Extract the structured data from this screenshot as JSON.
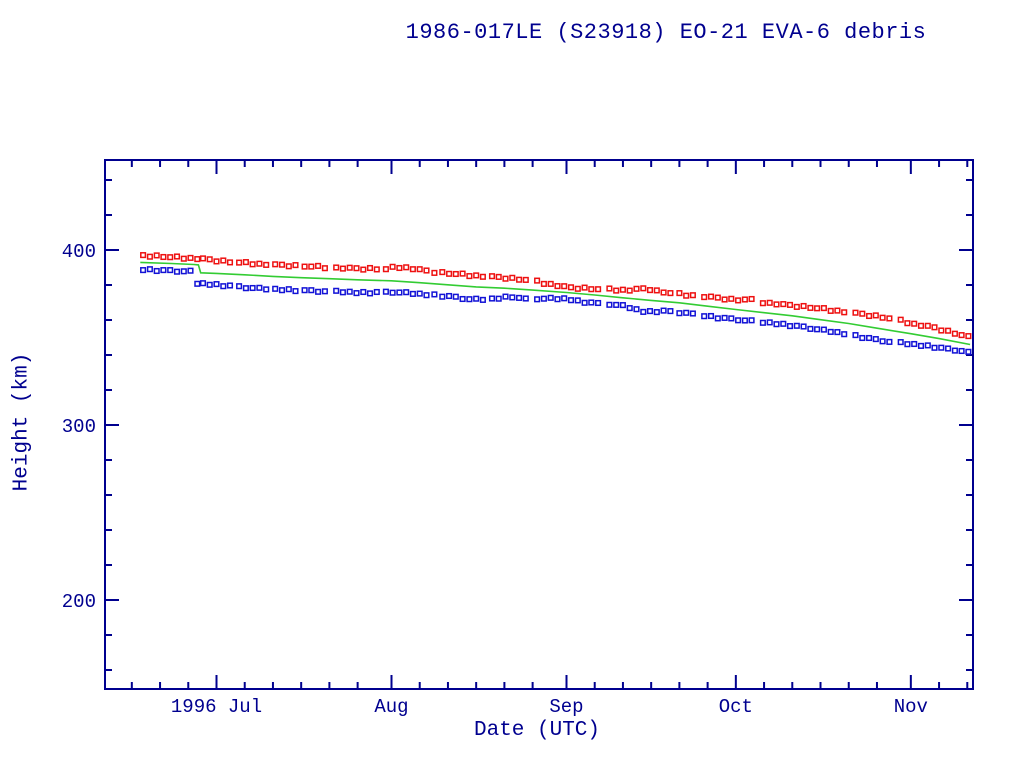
{
  "window": {
    "title": "1986-017LE (S23918) EO-21 EVA-6 debris"
  },
  "colors": {
    "background": "#ffffff",
    "frame_and_text": "#00008f",
    "apogee": "#ee1010",
    "perigee": "#1212d6",
    "mean": "#33cc33"
  },
  "chart_data": {
    "type": "scatter",
    "title": "1986-017LE (S23918) EO-21 EVA-6 debris",
    "xlabel": "Date (UTC)",
    "ylabel": "Height (km)",
    "grid": false,
    "legend": "none",
    "x_axis": {
      "unit": "days relative to 1996 Jul 1",
      "range_days": [
        -19.8,
        134.0
      ],
      "major_ticks": [
        {
          "day": 0,
          "label": "1996 Jul"
        },
        {
          "day": 31,
          "label": "Aug"
        },
        {
          "day": 62,
          "label": "Sep"
        },
        {
          "day": 92,
          "label": "Oct"
        },
        {
          "day": 123,
          "label": "Nov"
        }
      ],
      "minor_tick_days": [
        -15,
        -10,
        -5,
        5,
        10,
        15,
        20,
        25,
        36,
        41,
        46,
        51,
        56,
        67,
        72,
        77,
        82,
        87,
        97,
        102,
        107,
        112,
        117,
        128,
        133
      ]
    },
    "y_axis": {
      "range_km": [
        149,
        451.5
      ],
      "major_ticks": [
        200,
        300,
        400
      ],
      "minor_ticks": [
        160,
        180,
        220,
        240,
        260,
        280,
        320,
        340,
        360,
        380,
        420,
        440
      ]
    },
    "series": [
      {
        "name": "apogee-height",
        "style": "open-square",
        "color_key": "apogee",
        "points": [
          [
            -13,
            397.1
          ],
          [
            -11.8,
            396.2
          ],
          [
            -10.6,
            396.9
          ],
          [
            -9.4,
            396.0
          ],
          [
            -8.2,
            395.9
          ],
          [
            -7,
            396.3
          ],
          [
            -5.8,
            395.0
          ],
          [
            -4.6,
            395.5
          ],
          [
            -3.4,
            394.8
          ],
          [
            -2.4,
            395.2
          ],
          [
            -1.2,
            394.7
          ],
          [
            0,
            393.5
          ],
          [
            1.2,
            394.0
          ],
          [
            2.4,
            392.9
          ],
          [
            4,
            392.8
          ],
          [
            5.2,
            393.1
          ],
          [
            6.4,
            391.8
          ],
          [
            7.6,
            392.2
          ],
          [
            8.8,
            391.5
          ],
          [
            10.4,
            391.8
          ],
          [
            11.6,
            391.6
          ],
          [
            12.8,
            390.7
          ],
          [
            14,
            391.4
          ],
          [
            15.6,
            390.5
          ],
          [
            16.8,
            390.5
          ],
          [
            18,
            390.9
          ],
          [
            19.2,
            389.6
          ],
          [
            21.2,
            390.0
          ],
          [
            22.4,
            389.4
          ],
          [
            23.6,
            389.9
          ],
          [
            24.8,
            389.6
          ],
          [
            26,
            388.8
          ],
          [
            27.2,
            389.7
          ],
          [
            28.4,
            388.9
          ],
          [
            30,
            389.0
          ],
          [
            31.2,
            390.4
          ],
          [
            32.4,
            389.7
          ],
          [
            33.6,
            390.1
          ],
          [
            34.8,
            389.0
          ],
          [
            36,
            389.0
          ],
          [
            37.2,
            388.3
          ],
          [
            38.6,
            386.9
          ],
          [
            40,
            387.4
          ],
          [
            41.2,
            386.4
          ],
          [
            42.4,
            386.3
          ],
          [
            43.6,
            386.5
          ],
          [
            44.8,
            385.1
          ],
          [
            46,
            385.5
          ],
          [
            47.2,
            384.7
          ],
          [
            48.8,
            385.0
          ],
          [
            50,
            384.6
          ],
          [
            51.2,
            383.6
          ],
          [
            52.4,
            384.1
          ],
          [
            53.6,
            383.0
          ],
          [
            54.8,
            382.9
          ],
          [
            56.8,
            382.5
          ],
          [
            58,
            380.6
          ],
          [
            59.2,
            380.6
          ],
          [
            60.4,
            379.4
          ],
          [
            61.6,
            379.3
          ],
          [
            62.8,
            378.7
          ],
          [
            64,
            377.8
          ],
          [
            65.2,
            378.5
          ],
          [
            66.4,
            377.6
          ],
          [
            67.6,
            377.6
          ],
          [
            69.6,
            378.0
          ],
          [
            70.8,
            376.8
          ],
          [
            72,
            377.3
          ],
          [
            73.2,
            376.8
          ],
          [
            74.4,
            377.8
          ],
          [
            75.6,
            378.1
          ],
          [
            76.8,
            377.1
          ],
          [
            78,
            376.9
          ],
          [
            79.2,
            375.7
          ],
          [
            80.4,
            375.4
          ],
          [
            82,
            375.4
          ],
          [
            83.2,
            373.9
          ],
          [
            84.4,
            374.2
          ],
          [
            86.4,
            373.1
          ],
          [
            87.6,
            373.4
          ],
          [
            88.8,
            372.8
          ],
          [
            90,
            371.7
          ],
          [
            91.2,
            372.1
          ],
          [
            92.4,
            371.2
          ],
          [
            93.6,
            371.7
          ],
          [
            94.8,
            372.0
          ],
          [
            96.8,
            369.6
          ],
          [
            98,
            369.8
          ],
          [
            99.2,
            368.9
          ],
          [
            100.4,
            369.1
          ],
          [
            101.6,
            368.6
          ],
          [
            102.8,
            367.5
          ],
          [
            104,
            368.0
          ],
          [
            105.2,
            366.9
          ],
          [
            106.4,
            366.7
          ],
          [
            107.6,
            366.8
          ],
          [
            108.8,
            365.2
          ],
          [
            110,
            365.4
          ],
          [
            111.2,
            364.4
          ],
          [
            113.2,
            364.2
          ],
          [
            114.4,
            363.6
          ],
          [
            115.6,
            362.3
          ],
          [
            116.8,
            362.6
          ],
          [
            118,
            361.3
          ],
          [
            119.2,
            360.9
          ],
          [
            121.2,
            360.2
          ],
          [
            122.4,
            358.2
          ],
          [
            123.6,
            357.9
          ],
          [
            124.8,
            356.7
          ],
          [
            126,
            356.7
          ],
          [
            127.2,
            355.8
          ],
          [
            128.4,
            354.0
          ],
          [
            129.6,
            353.9
          ],
          [
            130.8,
            352.2
          ],
          [
            132,
            351.4
          ],
          [
            133.2,
            350.8
          ]
        ]
      },
      {
        "name": "perigee-height",
        "style": "open-square",
        "color_key": "perigee",
        "points": [
          [
            -13,
            388.5
          ],
          [
            -11.8,
            389.0
          ],
          [
            -10.6,
            388.0
          ],
          [
            -9.4,
            388.5
          ],
          [
            -8.2,
            388.5
          ],
          [
            -7,
            387.6
          ],
          [
            -5.8,
            387.8
          ],
          [
            -4.6,
            388.2
          ],
          [
            -3.4,
            380.7
          ],
          [
            -2.4,
            381.0
          ],
          [
            -1.2,
            380.1
          ],
          [
            0,
            380.5
          ],
          [
            1.2,
            379.3
          ],
          [
            2.4,
            379.7
          ],
          [
            4,
            379.3
          ],
          [
            5.2,
            378.2
          ],
          [
            6.4,
            378.3
          ],
          [
            7.6,
            378.4
          ],
          [
            8.8,
            377.5
          ],
          [
            10.4,
            377.8
          ],
          [
            11.6,
            377.0
          ],
          [
            12.8,
            377.6
          ],
          [
            14,
            376.5
          ],
          [
            15.6,
            377.0
          ],
          [
            16.8,
            377.0
          ],
          [
            18,
            376.1
          ],
          [
            19.2,
            376.4
          ],
          [
            21.2,
            376.7
          ],
          [
            22.4,
            375.8
          ],
          [
            23.6,
            376.2
          ],
          [
            24.8,
            375.4
          ],
          [
            26,
            376.0
          ],
          [
            27.2,
            375.2
          ],
          [
            28.4,
            376.0
          ],
          [
            30,
            376.2
          ],
          [
            31.2,
            375.6
          ],
          [
            32.4,
            375.7
          ],
          [
            33.6,
            375.9
          ],
          [
            34.8,
            374.9
          ],
          [
            36,
            375.1
          ],
          [
            37.2,
            374.2
          ],
          [
            38.6,
            374.6
          ],
          [
            40,
            373.3
          ],
          [
            41.2,
            373.7
          ],
          [
            42.4,
            373.3
          ],
          [
            43.6,
            372.0
          ],
          [
            44.8,
            371.9
          ],
          [
            46,
            372.2
          ],
          [
            47.2,
            371.5
          ],
          [
            48.8,
            372.3
          ],
          [
            50,
            372.2
          ],
          [
            51.2,
            373.4
          ],
          [
            52.4,
            372.9
          ],
          [
            53.6,
            372.6
          ],
          [
            54.8,
            372.3
          ],
          [
            56.8,
            371.8
          ],
          [
            58,
            372.2
          ],
          [
            59.2,
            372.7
          ],
          [
            60.4,
            371.9
          ],
          [
            61.6,
            372.4
          ],
          [
            62.8,
            371.3
          ],
          [
            64,
            371.2
          ],
          [
            65.2,
            369.8
          ],
          [
            66.4,
            370.0
          ],
          [
            67.6,
            369.7
          ],
          [
            69.6,
            368.7
          ],
          [
            70.8,
            368.6
          ],
          [
            72,
            368.5
          ],
          [
            73.2,
            366.8
          ],
          [
            74.4,
            366.2
          ],
          [
            75.6,
            364.6
          ],
          [
            76.8,
            365.1
          ],
          [
            78,
            364.5
          ],
          [
            79.2,
            365.4
          ],
          [
            80.4,
            365.1
          ],
          [
            82,
            363.9
          ],
          [
            83.2,
            364.1
          ],
          [
            84.4,
            363.7
          ],
          [
            86.4,
            362.2
          ],
          [
            87.6,
            362.3
          ],
          [
            88.8,
            360.9
          ],
          [
            90,
            361.2
          ],
          [
            91.2,
            360.9
          ],
          [
            92.4,
            359.8
          ],
          [
            93.6,
            359.7
          ],
          [
            94.8,
            359.8
          ],
          [
            96.8,
            358.4
          ],
          [
            98,
            358.6
          ],
          [
            99.2,
            357.6
          ],
          [
            100.4,
            357.8
          ],
          [
            101.6,
            356.5
          ],
          [
            102.8,
            356.7
          ],
          [
            104,
            356.3
          ],
          [
            105.2,
            354.9
          ],
          [
            106.4,
            354.7
          ],
          [
            107.6,
            354.5
          ],
          [
            108.8,
            353.2
          ],
          [
            110,
            353.1
          ],
          [
            111.2,
            351.9
          ],
          [
            113.2,
            351.4
          ],
          [
            114.4,
            349.7
          ],
          [
            115.6,
            349.7
          ],
          [
            116.8,
            349.1
          ],
          [
            118,
            347.8
          ],
          [
            119.2,
            347.5
          ],
          [
            121.2,
            347.4
          ],
          [
            122.4,
            346.2
          ],
          [
            123.6,
            346.3
          ],
          [
            124.8,
            345.2
          ],
          [
            126,
            345.5
          ],
          [
            127.2,
            344.1
          ],
          [
            128.4,
            344.2
          ],
          [
            129.6,
            343.7
          ],
          [
            130.8,
            342.5
          ],
          [
            132,
            342.3
          ],
          [
            133.2,
            341.8
          ]
        ]
      },
      {
        "name": "mean-height",
        "style": "line",
        "color_key": "mean",
        "points": [
          [
            -13.5,
            392.9
          ],
          [
            -8,
            392.3
          ],
          [
            -4,
            391.7
          ],
          [
            -3.2,
            391.5
          ],
          [
            -2.8,
            387.0
          ],
          [
            0,
            386.6
          ],
          [
            5,
            385.8
          ],
          [
            10,
            384.9
          ],
          [
            15,
            384.2
          ],
          [
            20,
            383.6
          ],
          [
            25,
            383.0
          ],
          [
            31,
            382.4
          ],
          [
            36,
            381.3
          ],
          [
            41,
            380.1
          ],
          [
            46,
            378.9
          ],
          [
            51,
            378.2
          ],
          [
            56,
            377.1
          ],
          [
            62,
            375.7
          ],
          [
            67,
            374.3
          ],
          [
            72,
            372.7
          ],
          [
            77,
            371.2
          ],
          [
            82,
            369.8
          ],
          [
            87,
            367.9
          ],
          [
            92,
            366.0
          ],
          [
            97,
            364.2
          ],
          [
            102,
            362.4
          ],
          [
            107,
            360.2
          ],
          [
            112,
            358.0
          ],
          [
            117,
            355.3
          ],
          [
            123,
            352.2
          ],
          [
            128,
            349.4
          ],
          [
            133.5,
            346.0
          ]
        ]
      }
    ]
  }
}
